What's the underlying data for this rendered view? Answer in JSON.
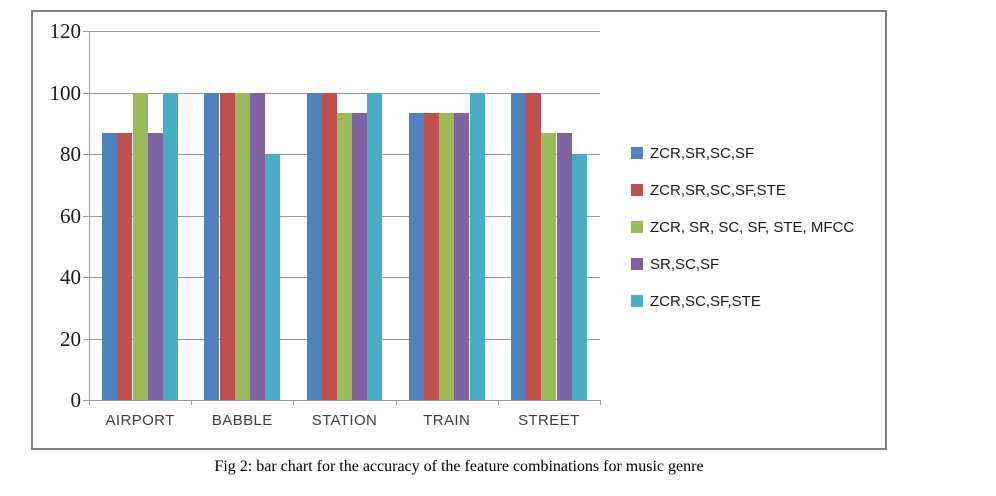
{
  "figure": {
    "caption": "Fig 2: bar chart for the accuracy of the feature combinations for music genre"
  },
  "colors": {
    "series": [
      "#4F81BD",
      "#C0504D",
      "#9BBB59",
      "#8064A2",
      "#4BACC6"
    ],
    "axis": "#9b9b9b",
    "frame_border": "#7f7f7f",
    "y_tick_label": "#1a1a1a",
    "category_label": "#3f3f3f",
    "legend_text": "#1a1a1a",
    "background": "#ffffff"
  },
  "chart_data": {
    "type": "bar",
    "title": "",
    "xlabel": "",
    "ylabel": "",
    "categories": [
      "AIRPORT",
      "BABBLE",
      "STATION",
      "TRAIN",
      "STREET"
    ],
    "series": [
      {
        "name": "ZCR,SR,SC,SF",
        "values": [
          86.7,
          100,
          100,
          93.3,
          100
        ]
      },
      {
        "name": "ZCR,SR,SC,SF,STE",
        "values": [
          86.7,
          100,
          100,
          93.3,
          100
        ]
      },
      {
        "name": "ZCR, SR, SC, SF, STE, MFCC",
        "values": [
          100,
          100,
          93.3,
          93.3,
          86.7
        ]
      },
      {
        "name": "SR,SC,SF",
        "values": [
          86.7,
          100,
          93.3,
          93.3,
          86.7
        ]
      },
      {
        "name": "ZCR,SC,SF,STE",
        "values": [
          100,
          80,
          100,
          100,
          80
        ]
      }
    ],
    "ylim": [
      0,
      120
    ],
    "yticks": [
      0,
      20,
      40,
      60,
      80,
      100,
      120
    ],
    "grid": true,
    "legend_position": "right"
  }
}
